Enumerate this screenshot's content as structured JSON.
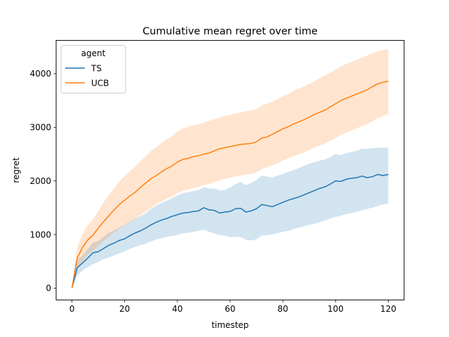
{
  "chart_data": {
    "type": "line",
    "title": "Cumulative mean regret over time",
    "xlabel": "timestep",
    "ylabel": "regret",
    "xlim": [
      -6,
      126
    ],
    "ylim": [
      -220,
      4620
    ],
    "xticks": [
      0,
      20,
      40,
      60,
      80,
      100,
      120
    ],
    "yticks": [
      0,
      1000,
      2000,
      3000,
      4000
    ],
    "grid": false,
    "legend": {
      "title": "agent",
      "position": "top-left"
    },
    "x": [
      0,
      2,
      4,
      6,
      8,
      10,
      12,
      14,
      16,
      18,
      20,
      22,
      24,
      26,
      28,
      30,
      32,
      34,
      36,
      38,
      40,
      42,
      44,
      46,
      48,
      50,
      52,
      54,
      56,
      58,
      60,
      62,
      64,
      66,
      68,
      70,
      72,
      74,
      76,
      78,
      80,
      82,
      84,
      86,
      88,
      90,
      92,
      94,
      96,
      98,
      100,
      102,
      104,
      106,
      108,
      110,
      112,
      114,
      116,
      118,
      120
    ],
    "series": [
      {
        "name": "TS",
        "color": "#1f77b4",
        "values": [
          0,
          380,
          470,
          560,
          660,
          680,
          740,
          800,
          840,
          890,
          920,
          980,
          1030,
          1070,
          1120,
          1180,
          1230,
          1270,
          1300,
          1340,
          1370,
          1400,
          1410,
          1430,
          1440,
          1500,
          1460,
          1450,
          1400,
          1420,
          1430,
          1480,
          1490,
          1420,
          1440,
          1480,
          1560,
          1540,
          1520,
          1560,
          1600,
          1640,
          1670,
          1700,
          1740,
          1780,
          1820,
          1860,
          1890,
          1940,
          2000,
          1990,
          2030,
          2050,
          2060,
          2090,
          2060,
          2080,
          2120,
          2100,
          2120
        ],
        "band_lower": [
          0,
          230,
          330,
          390,
          450,
          490,
          540,
          570,
          610,
          650,
          690,
          730,
          770,
          800,
          830,
          870,
          910,
          930,
          960,
          970,
          990,
          1020,
          1030,
          1050,
          1070,
          1090,
          1050,
          1020,
          990,
          980,
          950,
          960,
          950,
          900,
          890,
          910,
          980,
          990,
          1000,
          1030,
          1050,
          1070,
          1100,
          1130,
          1150,
          1180,
          1200,
          1230,
          1260,
          1300,
          1330,
          1350,
          1380,
          1400,
          1420,
          1450,
          1480,
          1500,
          1530,
          1560,
          1580
        ],
        "band_upper": [
          0,
          520,
          610,
          730,
          850,
          880,
          960,
          1030,
          1080,
          1130,
          1180,
          1250,
          1300,
          1340,
          1400,
          1480,
          1540,
          1590,
          1630,
          1680,
          1730,
          1770,
          1790,
          1810,
          1830,
          1880,
          1860,
          1860,
          1820,
          1830,
          1880,
          1940,
          1980,
          1920,
          1960,
          2020,
          2100,
          2080,
          2060,
          2100,
          2130,
          2170,
          2200,
          2240,
          2280,
          2320,
          2350,
          2380,
          2400,
          2440,
          2500,
          2480,
          2520,
          2540,
          2560,
          2600,
          2600,
          2610,
          2620,
          2620,
          2620
        ]
      },
      {
        "name": "UCB",
        "color": "#ff7f0e",
        "values": [
          0,
          560,
          760,
          900,
          990,
          1120,
          1240,
          1350,
          1460,
          1560,
          1640,
          1720,
          1790,
          1880,
          1960,
          2040,
          2100,
          2170,
          2230,
          2280,
          2350,
          2400,
          2420,
          2450,
          2470,
          2500,
          2520,
          2560,
          2600,
          2620,
          2640,
          2660,
          2680,
          2690,
          2700,
          2730,
          2800,
          2820,
          2870,
          2920,
          2970,
          3010,
          3060,
          3100,
          3140,
          3190,
          3240,
          3280,
          3320,
          3380,
          3440,
          3500,
          3540,
          3580,
          3620,
          3660,
          3700,
          3760,
          3810,
          3840,
          3860
        ],
        "band_lower": [
          0,
          360,
          510,
          620,
          700,
          790,
          880,
          960,
          1040,
          1110,
          1170,
          1240,
          1290,
          1360,
          1430,
          1500,
          1560,
          1620,
          1670,
          1710,
          1770,
          1810,
          1840,
          1870,
          1890,
          1920,
          1940,
          1980,
          2010,
          2040,
          2060,
          2080,
          2100,
          2120,
          2130,
          2160,
          2220,
          2250,
          2290,
          2330,
          2380,
          2420,
          2460,
          2500,
          2530,
          2580,
          2620,
          2660,
          2700,
          2750,
          2800,
          2860,
          2900,
          2940,
          2980,
          3020,
          3060,
          3110,
          3170,
          3210,
          3250
        ],
        "band_upper": [
          0,
          760,
          1010,
          1180,
          1280,
          1440,
          1600,
          1730,
          1870,
          1990,
          2090,
          2180,
          2270,
          2370,
          2460,
          2560,
          2630,
          2710,
          2780,
          2840,
          2920,
          2980,
          3010,
          3040,
          3060,
          3090,
          3120,
          3150,
          3180,
          3210,
          3230,
          3260,
          3280,
          3300,
          3310,
          3340,
          3410,
          3440,
          3480,
          3530,
          3580,
          3620,
          3680,
          3720,
          3760,
          3810,
          3860,
          3920,
          3970,
          4020,
          4080,
          4140,
          4180,
          4220,
          4260,
          4300,
          4340,
          4380,
          4420,
          4440,
          4460
        ]
      }
    ]
  }
}
